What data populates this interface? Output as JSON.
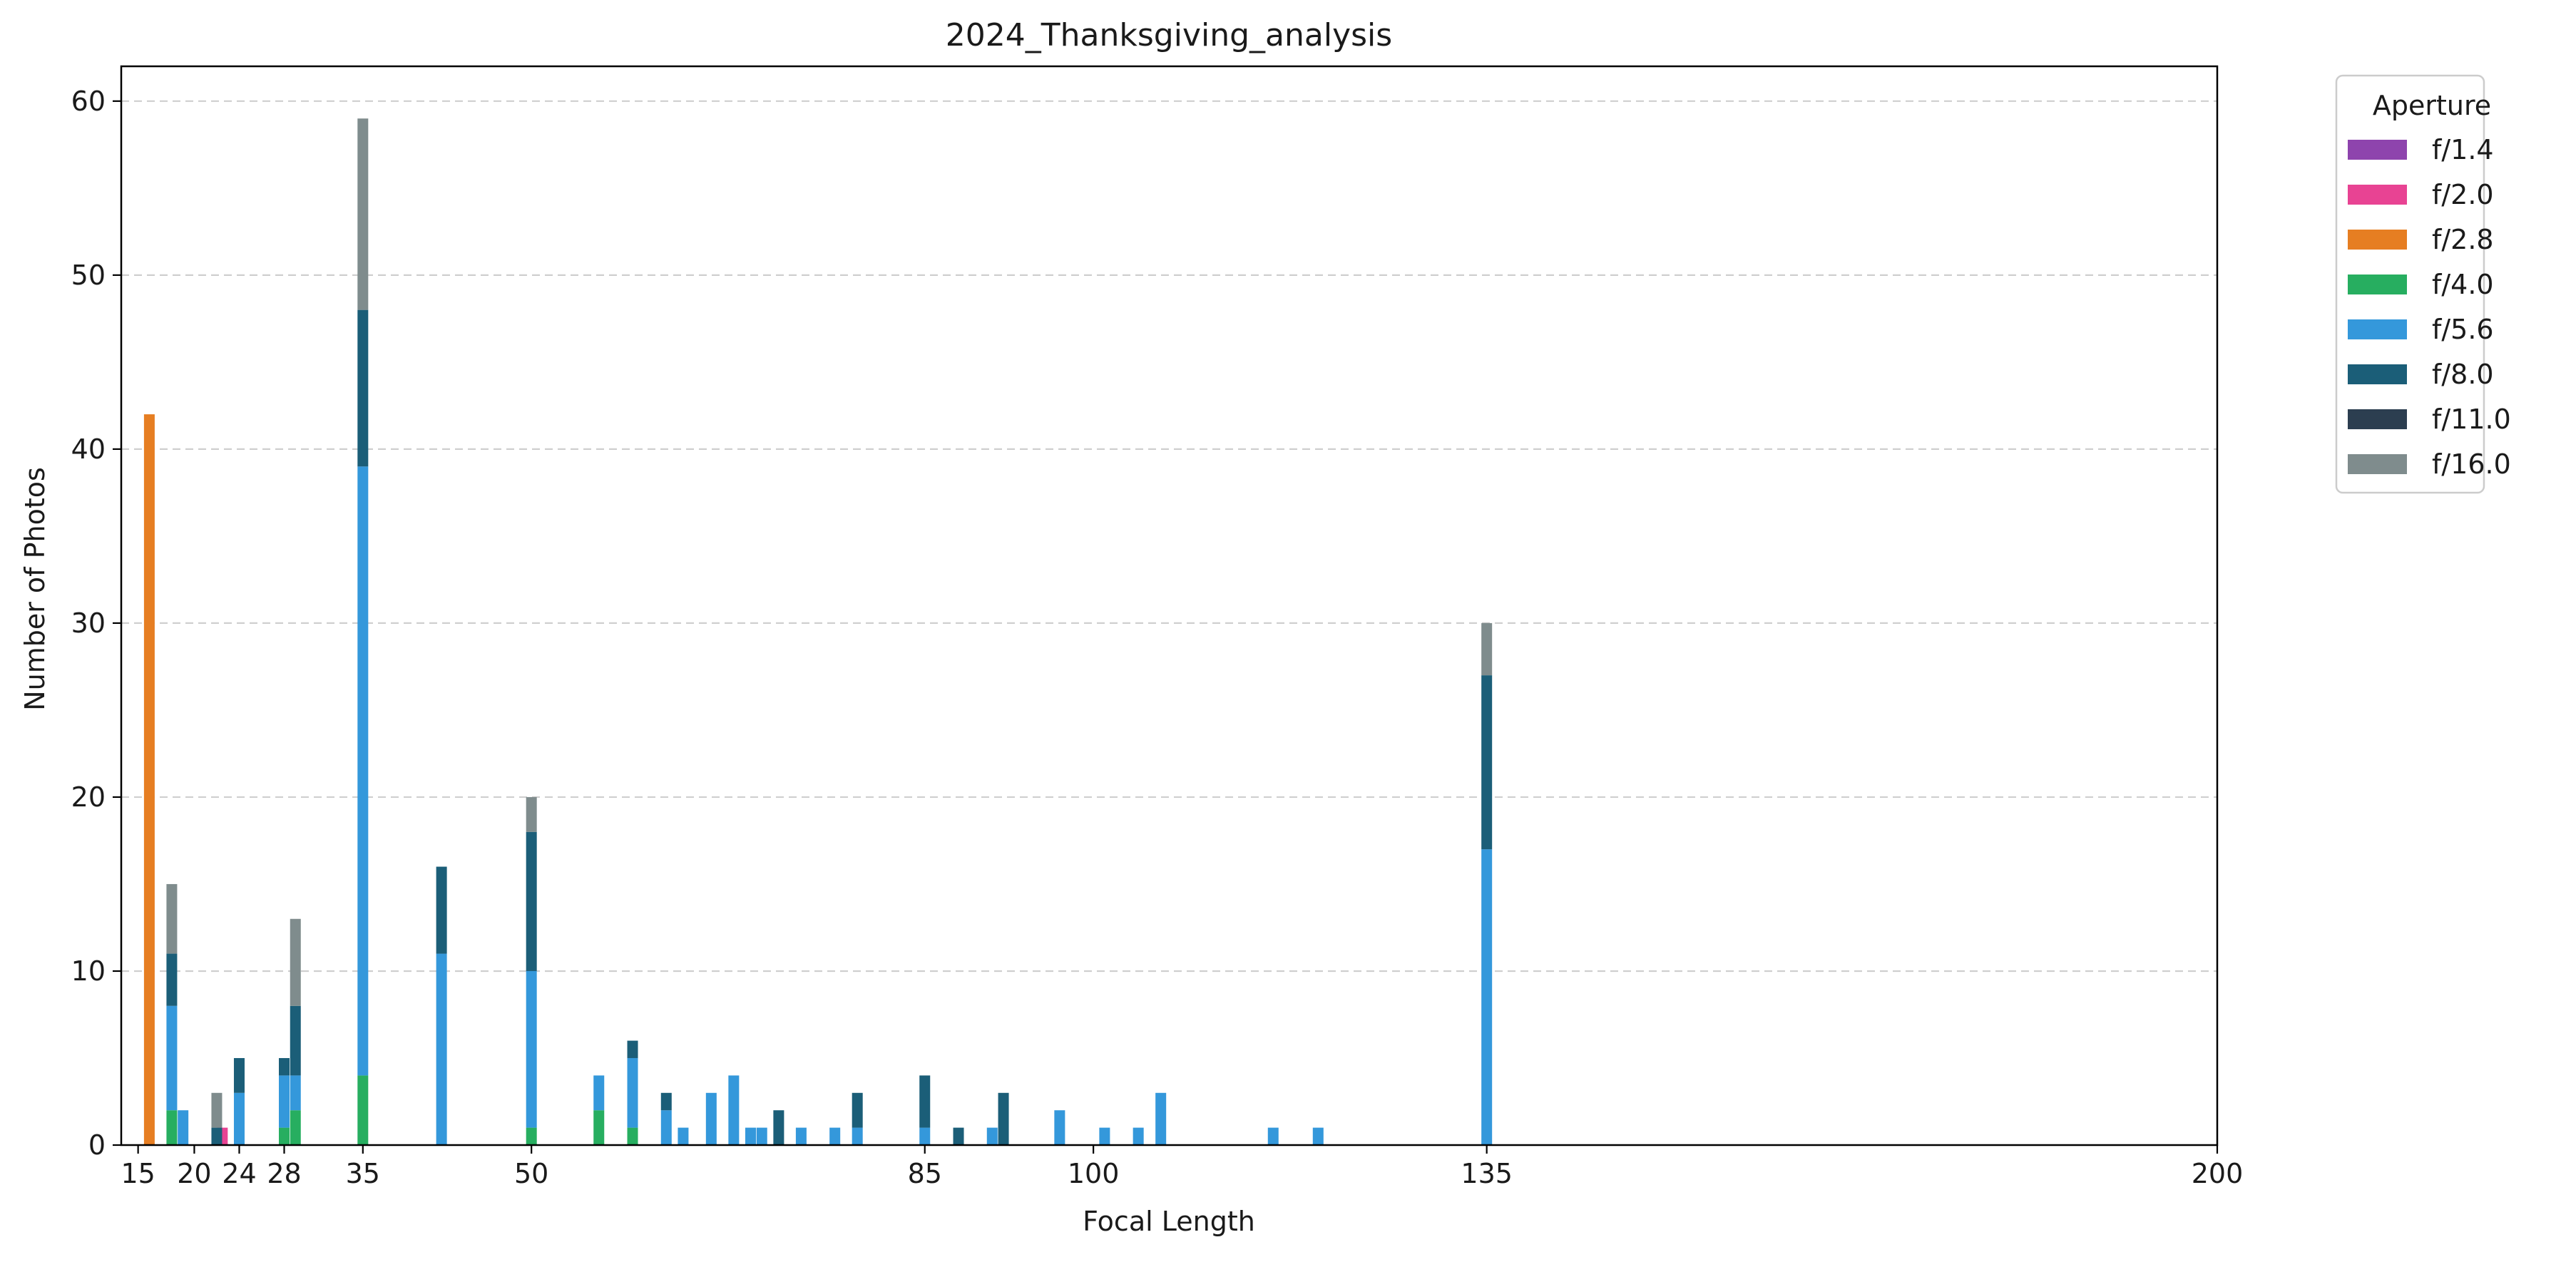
{
  "chart_data": {
    "type": "bar",
    "stacked": true,
    "title": "2024_Thanksgiving_analysis",
    "xlabel": "Focal Length",
    "ylabel": "Number of Photos",
    "xlim": [
      13.5,
      200
    ],
    "ylim": [
      0,
      62
    ],
    "xticks": [
      15,
      20,
      24,
      28,
      35,
      50,
      85,
      100,
      135,
      200
    ],
    "yticks": [
      0,
      10,
      20,
      30,
      40,
      50,
      60
    ],
    "grid": "y-dashed",
    "legend": {
      "title": "Aperture",
      "placement": "outside-top-right"
    },
    "series": [
      {
        "name": "f/1.4",
        "color": "#8e44ad",
        "points": []
      },
      {
        "name": "f/2.0",
        "color": "#e84393",
        "points": [
          [
            22.5,
            1
          ]
        ]
      },
      {
        "name": "f/2.8",
        "color": "#e67e22",
        "points": [
          [
            16,
            42
          ]
        ]
      },
      {
        "name": "f/4.0",
        "color": "#27ae60",
        "points": [
          [
            18,
            2
          ],
          [
            28,
            1
          ],
          [
            29,
            2
          ],
          [
            35,
            4
          ],
          [
            50,
            1
          ],
          [
            56,
            2
          ],
          [
            59,
            1
          ]
        ]
      },
      {
        "name": "f/5.6",
        "color": "#3498db",
        "points": [
          [
            18,
            6
          ],
          [
            19,
            2
          ],
          [
            24,
            3
          ],
          [
            28,
            3
          ],
          [
            29,
            2
          ],
          [
            35,
            35
          ],
          [
            42,
            11
          ],
          [
            50,
            9
          ],
          [
            56,
            2
          ],
          [
            59,
            4
          ],
          [
            62,
            2
          ],
          [
            63.5,
            1
          ],
          [
            66,
            3
          ],
          [
            68,
            4
          ],
          [
            69.5,
            1
          ],
          [
            70.5,
            1
          ],
          [
            74,
            1
          ],
          [
            77,
            1
          ],
          [
            79,
            1
          ],
          [
            85,
            1
          ],
          [
            91,
            1
          ],
          [
            97,
            2
          ],
          [
            101,
            1
          ],
          [
            104,
            1
          ],
          [
            106,
            3
          ],
          [
            116,
            1
          ],
          [
            120,
            1
          ],
          [
            135,
            17
          ]
        ]
      },
      {
        "name": "f/8.0",
        "color": "#1b5e78",
        "points": [
          [
            18,
            3
          ],
          [
            22,
            1
          ],
          [
            24,
            2
          ],
          [
            28,
            1
          ],
          [
            29,
            4
          ],
          [
            35,
            9
          ],
          [
            42,
            5
          ],
          [
            50,
            8
          ],
          [
            59,
            1
          ],
          [
            62,
            1
          ],
          [
            72,
            2
          ],
          [
            79,
            2
          ],
          [
            85,
            3
          ],
          [
            88,
            1
          ],
          [
            92,
            3
          ],
          [
            135,
            10
          ]
        ]
      },
      {
        "name": "f/11.0",
        "color": "#2c3e50",
        "points": []
      },
      {
        "name": "f/16.0",
        "color": "#7f8c8d",
        "points": [
          [
            18,
            4
          ],
          [
            22,
            2
          ],
          [
            29,
            5
          ],
          [
            35,
            11
          ],
          [
            50,
            2
          ],
          [
            135,
            3
          ]
        ]
      }
    ]
  }
}
